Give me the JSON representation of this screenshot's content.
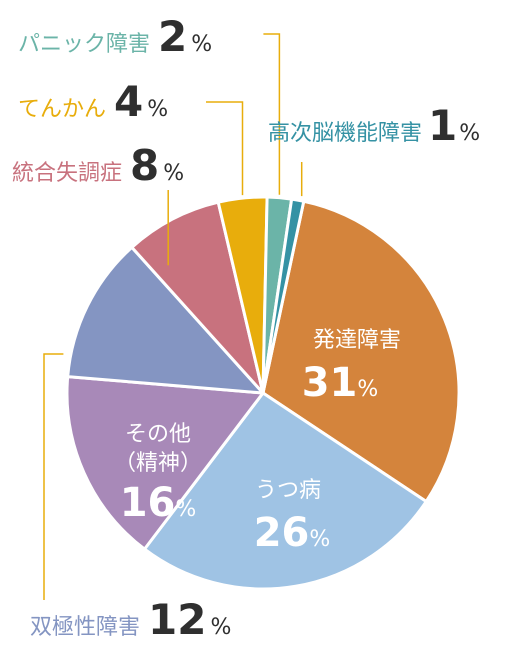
{
  "chart_data": {
    "type": "pie",
    "percent_sign": "%",
    "slices": [
      {
        "label": "発達障害",
        "value": 31,
        "color": "#d4843c"
      },
      {
        "label": "うつ病",
        "value": 26,
        "color": "#9fc3e4"
      },
      {
        "label": "その他",
        "sublabel": "（精神）",
        "value": 16,
        "color": "#a889b8"
      },
      {
        "label": "双極性障害",
        "value": 12,
        "color": "#8495c2"
      },
      {
        "label": "統合失調症",
        "value": 8,
        "color": "#c8727e"
      },
      {
        "label": "てんかん",
        "value": 4,
        "color": "#e8ad0c"
      },
      {
        "label": "パニック障害",
        "value": 2,
        "color": "#6bb4a8"
      },
      {
        "label": "高次脳機能障害",
        "value": 1,
        "color": "#3592a4"
      }
    ],
    "leader_line_color": "#e8ad0c"
  }
}
